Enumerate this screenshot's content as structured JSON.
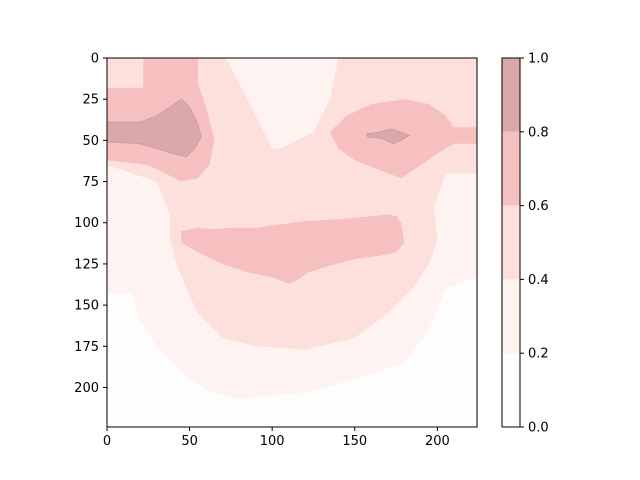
{
  "chart_data": {
    "type": "heatmap",
    "subtype": "filled-contour",
    "title": "",
    "xlabel": "",
    "ylabel": "",
    "xlim": [
      0,
      224
    ],
    "ylim": [
      224,
      0
    ],
    "y_inverted": true,
    "x_ticks": [
      0,
      50,
      100,
      150,
      200
    ],
    "y_ticks": [
      0,
      25,
      50,
      75,
      100,
      125,
      150,
      175,
      200
    ],
    "colorbar": {
      "range": [
        0.0,
        1.0
      ],
      "levels": [
        0.0,
        0.2,
        0.4,
        0.6,
        0.8,
        1.0
      ],
      "tick_labels": [
        "0.0",
        "0.2",
        "0.4",
        "0.6",
        "0.8",
        "1.0"
      ],
      "band_colors": [
        "#fefdfd",
        "#fef3f0",
        "#fde0db",
        "#f5c0bf",
        "#dba8a9"
      ]
    },
    "regions": [
      {
        "level_band": [
          0.0,
          0.2
        ],
        "description": "background",
        "polygon": [
          [
            0,
            0
          ],
          [
            224,
            0
          ],
          [
            224,
            224
          ],
          [
            0,
            224
          ]
        ]
      },
      {
        "level_band": [
          0.2,
          0.4
        ],
        "polygon": [
          [
            0,
            0
          ],
          [
            224,
            0
          ],
          [
            224,
            133
          ],
          [
            205,
            140
          ],
          [
            195,
            165
          ],
          [
            180,
            185
          ],
          [
            150,
            195
          ],
          [
            120,
            203
          ],
          [
            80,
            207
          ],
          [
            60,
            202
          ],
          [
            45,
            190
          ],
          [
            30,
            175
          ],
          [
            20,
            160
          ],
          [
            15,
            143
          ],
          [
            0,
            143
          ]
        ]
      },
      {
        "level_band": [
          0.4,
          0.6
        ],
        "polygon": [
          [
            0,
            0
          ],
          [
            72,
            0
          ],
          [
            85,
            25
          ],
          [
            95,
            45
          ],
          [
            100,
            55
          ],
          [
            105,
            55
          ],
          [
            115,
            50
          ],
          [
            125,
            45
          ],
          [
            135,
            25
          ],
          [
            140,
            0
          ],
          [
            224,
            0
          ],
          [
            224,
            70
          ],
          [
            205,
            70
          ],
          [
            198,
            90
          ],
          [
            200,
            110
          ],
          [
            195,
            125
          ],
          [
            185,
            140
          ],
          [
            170,
            155
          ],
          [
            150,
            170
          ],
          [
            120,
            177
          ],
          [
            90,
            175
          ],
          [
            70,
            170
          ],
          [
            55,
            155
          ],
          [
            48,
            140
          ],
          [
            42,
            125
          ],
          [
            38,
            110
          ],
          [
            38,
            95
          ],
          [
            30,
            75
          ],
          [
            0,
            65
          ]
        ]
      },
      {
        "level_band": [
          0.6,
          0.8
        ],
        "polygon": [
          [
            0,
            18
          ],
          [
            22,
            18
          ],
          [
            22,
            0
          ],
          [
            55,
            0
          ],
          [
            55,
            15
          ],
          [
            60,
            30
          ],
          [
            65,
            50
          ],
          [
            62,
            65
          ],
          [
            55,
            73
          ],
          [
            45,
            75
          ],
          [
            35,
            70
          ],
          [
            25,
            65
          ],
          [
            0,
            62
          ]
        ]
      },
      {
        "level_band": [
          0.6,
          0.8
        ],
        "polygon": [
          [
            135,
            45
          ],
          [
            145,
            35
          ],
          [
            160,
            28
          ],
          [
            180,
            25
          ],
          [
            195,
            28
          ],
          [
            205,
            35
          ],
          [
            210,
            42
          ],
          [
            224,
            42
          ],
          [
            224,
            52
          ],
          [
            210,
            52
          ],
          [
            200,
            58
          ],
          [
            190,
            65
          ],
          [
            178,
            73
          ],
          [
            165,
            68
          ],
          [
            150,
            62
          ],
          [
            140,
            55
          ]
        ]
      },
      {
        "level_band": [
          0.6,
          0.8
        ],
        "polygon": [
          [
            45,
            105
          ],
          [
            55,
            103
          ],
          [
            65,
            104
          ],
          [
            75,
            103
          ],
          [
            90,
            103
          ],
          [
            105,
            101
          ],
          [
            120,
            99
          ],
          [
            140,
            98
          ],
          [
            150,
            97
          ],
          [
            170,
            95
          ],
          [
            175,
            96
          ],
          [
            178,
            100
          ],
          [
            180,
            112
          ],
          [
            175,
            118
          ],
          [
            165,
            120
          ],
          [
            150,
            122
          ],
          [
            135,
            126
          ],
          [
            122,
            130
          ],
          [
            115,
            135
          ],
          [
            110,
            137
          ],
          [
            100,
            133
          ],
          [
            85,
            130
          ],
          [
            70,
            125
          ],
          [
            55,
            118
          ],
          [
            45,
            112
          ]
        ]
      },
      {
        "level_band": [
          0.8,
          1.0
        ],
        "polygon": [
          [
            0,
            39
          ],
          [
            20,
            39
          ],
          [
            30,
            35
          ],
          [
            38,
            30
          ],
          [
            45,
            25
          ],
          [
            50,
            30
          ],
          [
            55,
            40
          ],
          [
            57,
            48
          ],
          [
            53,
            55
          ],
          [
            48,
            60
          ],
          [
            40,
            58
          ],
          [
            30,
            55
          ],
          [
            20,
            52
          ],
          [
            0,
            51
          ]
        ]
      },
      {
        "level_band": [
          0.8,
          1.0
        ],
        "polygon": [
          [
            157,
            46
          ],
          [
            165,
            45
          ],
          [
            172,
            43
          ],
          [
            178,
            45
          ],
          [
            183,
            47
          ],
          [
            178,
            50
          ],
          [
            173,
            52
          ],
          [
            167,
            49
          ],
          [
            158,
            48
          ]
        ]
      }
    ]
  }
}
